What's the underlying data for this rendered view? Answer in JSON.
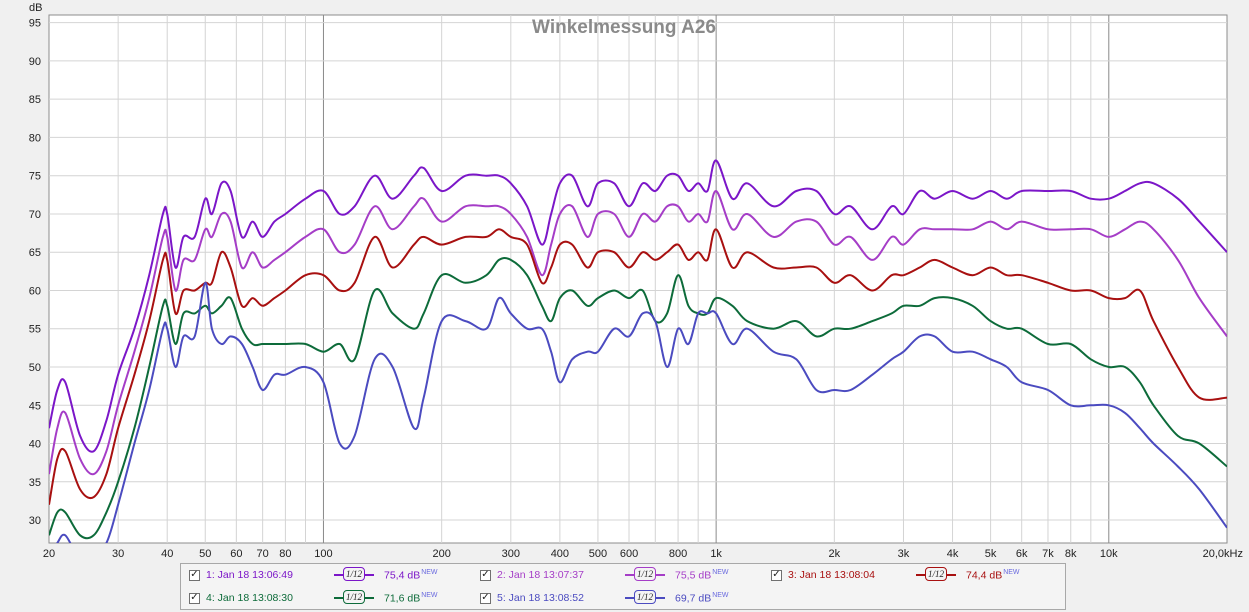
{
  "chart_data": {
    "type": "line",
    "title": "Winkelmessung A26",
    "ylabel": "dB",
    "xscale": "log",
    "xlim": [
      20,
      20000
    ],
    "ylim": [
      27,
      96
    ],
    "grid": true,
    "x_tick_labels": [
      {
        "v": 20,
        "t": "20"
      },
      {
        "v": 30,
        "t": "30"
      },
      {
        "v": 40,
        "t": "40"
      },
      {
        "v": 50,
        "t": "50"
      },
      {
        "v": 60,
        "t": "60"
      },
      {
        "v": 70,
        "t": "70"
      },
      {
        "v": 80,
        "t": "80"
      },
      {
        "v": 100,
        "t": "100"
      },
      {
        "v": 200,
        "t": "200"
      },
      {
        "v": 300,
        "t": "300"
      },
      {
        "v": 400,
        "t": "400"
      },
      {
        "v": 500,
        "t": "500"
      },
      {
        "v": 600,
        "t": "600"
      },
      {
        "v": 800,
        "t": "800"
      },
      {
        "v": 1000,
        "t": "1k"
      },
      {
        "v": 2000,
        "t": "2k"
      },
      {
        "v": 3000,
        "t": "3k"
      },
      {
        "v": 4000,
        "t": "4k"
      },
      {
        "v": 5000,
        "t": "5k"
      },
      {
        "v": 6000,
        "t": "6k"
      },
      {
        "v": 7000,
        "t": "7k"
      },
      {
        "v": 8000,
        "t": "8k"
      },
      {
        "v": 10000,
        "t": "10k"
      },
      {
        "v": 20000,
        "t": "20,0kHz"
      }
    ],
    "y_ticks": [
      30,
      35,
      40,
      45,
      50,
      55,
      60,
      65,
      70,
      75,
      80,
      85,
      90,
      95
    ],
    "series": [
      {
        "name": "1: Jan 18 13:06:49",
        "level": "75,4 dB",
        "color": "#7b16c8",
        "smoothing": "1/12",
        "x": [
          20,
          21,
          22,
          24,
          26,
          28,
          30,
          33,
          36,
          39,
          40,
          42,
          44,
          47,
          50,
          52,
          55,
          58,
          62,
          66,
          70,
          75,
          80,
          90,
          100,
          110,
          120,
          135,
          150,
          170,
          180,
          200,
          230,
          260,
          280,
          300,
          330,
          360,
          380,
          400,
          430,
          470,
          500,
          550,
          600,
          650,
          700,
          750,
          800,
          850,
          900,
          950,
          1000,
          1100,
          1200,
          1400,
          1600,
          1800,
          2000,
          2200,
          2500,
          2800,
          3000,
          3300,
          3600,
          4000,
          4500,
          5000,
          5500,
          6000,
          7000,
          8000,
          9000,
          10000,
          11000,
          12000,
          13000,
          15000,
          17000,
          20000
        ],
        "y": [
          42,
          47,
          48,
          41,
          39,
          43,
          49,
          55,
          62,
          70,
          70,
          63,
          67,
          67,
          72,
          70,
          74,
          73,
          67,
          69,
          67,
          69,
          70,
          72,
          73,
          70,
          71,
          75,
          72,
          75,
          76,
          73,
          75,
          75,
          75,
          74,
          71,
          66,
          70,
          74,
          75,
          71,
          74,
          74,
          71,
          74,
          73,
          75,
          75,
          73,
          74,
          73,
          77,
          72,
          74,
          71,
          73,
          73,
          70,
          71,
          68,
          71,
          70,
          73,
          72,
          73,
          72,
          73,
          72,
          73,
          73,
          73,
          72,
          72,
          73,
          74,
          74,
          72,
          69,
          65
        ]
      },
      {
        "name": "2: Jan 18 13:07:37",
        "level": "75,5 dB",
        "color": "#a53dc7",
        "smoothing": "1/12",
        "x": [
          20,
          21,
          22,
          24,
          26,
          28,
          30,
          33,
          36,
          39,
          40,
          42,
          44,
          47,
          50,
          52,
          55,
          58,
          62,
          66,
          70,
          75,
          80,
          90,
          100,
          110,
          120,
          135,
          150,
          170,
          180,
          200,
          230,
          260,
          280,
          300,
          330,
          360,
          380,
          400,
          430,
          470,
          500,
          550,
          600,
          650,
          700,
          750,
          800,
          850,
          900,
          950,
          1000,
          1100,
          1200,
          1400,
          1600,
          1800,
          2000,
          2200,
          2500,
          2800,
          3000,
          3300,
          3600,
          4000,
          4500,
          5000,
          5500,
          6000,
          7000,
          8000,
          9000,
          10000,
          11000,
          12000,
          13000,
          15000,
          17000,
          20000
        ],
        "y": [
          36,
          42,
          44,
          38,
          36,
          39,
          45,
          52,
          59,
          67,
          67,
          60,
          64,
          64,
          68,
          67,
          70,
          69,
          63,
          65,
          63,
          64,
          65,
          67,
          68,
          65,
          66,
          71,
          68,
          71,
          72,
          69,
          71,
          71,
          71,
          70,
          67,
          62,
          66,
          70,
          71,
          67,
          70,
          70,
          67,
          70,
          69,
          71,
          71,
          69,
          70,
          69,
          73,
          68,
          70,
          67,
          69,
          69,
          66,
          67,
          64,
          67,
          66,
          68,
          68,
          68,
          68,
          69,
          68,
          69,
          68,
          68,
          68,
          67,
          68,
          69,
          68,
          64,
          59,
          54
        ]
      },
      {
        "name": "3: Jan 18 13:08:04",
        "level": "74,4 dB",
        "color": "#a81010",
        "smoothing": "1/12",
        "x": [
          20,
          21,
          22,
          24,
          26,
          28,
          30,
          33,
          36,
          39,
          40,
          42,
          44,
          47,
          50,
          52,
          55,
          58,
          62,
          66,
          70,
          75,
          80,
          90,
          100,
          110,
          120,
          135,
          150,
          170,
          180,
          200,
          230,
          260,
          280,
          300,
          330,
          360,
          380,
          400,
          430,
          470,
          500,
          550,
          600,
          650,
          700,
          750,
          800,
          850,
          900,
          950,
          1000,
          1100,
          1200,
          1400,
          1600,
          1800,
          2000,
          2200,
          2500,
          2800,
          3000,
          3300,
          3600,
          4000,
          4500,
          5000,
          5500,
          6000,
          7000,
          8000,
          9000,
          10000,
          11000,
          12000,
          13000,
          15000,
          17000,
          20000
        ],
        "y": [
          32,
          38,
          39,
          34,
          33,
          36,
          42,
          49,
          56,
          64,
          64,
          57,
          60,
          60,
          61,
          61,
          65,
          63,
          58,
          59,
          58,
          59,
          60,
          62,
          62,
          60,
          61,
          67,
          63,
          66,
          67,
          66,
          67,
          67,
          68,
          67,
          66,
          61,
          63,
          66,
          66,
          63,
          65,
          65,
          63,
          65,
          64,
          65,
          66,
          64,
          65,
          64,
          68,
          63,
          65,
          63,
          63,
          63,
          61,
          62,
          60,
          62,
          62,
          63,
          64,
          63,
          62,
          63,
          62,
          62,
          61,
          60,
          60,
          59,
          59,
          60,
          56,
          50,
          46,
          46
        ]
      },
      {
        "name": "4: Jan 18 13:08:30",
        "level": "71,6 dB",
        "color": "#0d6b3a",
        "smoothing": "1/12",
        "x": [
          20,
          21,
          22,
          24,
          26,
          28,
          30,
          33,
          36,
          39,
          40,
          42,
          44,
          47,
          50,
          52,
          55,
          58,
          62,
          66,
          70,
          75,
          80,
          90,
          100,
          110,
          120,
          135,
          150,
          170,
          180,
          200,
          230,
          260,
          280,
          300,
          330,
          360,
          380,
          400,
          430,
          470,
          500,
          550,
          600,
          650,
          700,
          750,
          800,
          850,
          900,
          950,
          1000,
          1100,
          1200,
          1400,
          1600,
          1800,
          2000,
          2200,
          2500,
          2800,
          3000,
          3300,
          3600,
          4000,
          4500,
          5000,
          5500,
          6000,
          7000,
          8000,
          9000,
          10000,
          11000,
          12000,
          13000,
          15000,
          17000,
          20000
        ],
        "y": [
          28,
          31,
          31,
          28,
          28,
          31,
          35,
          42,
          50,
          58,
          58,
          53,
          57,
          57,
          58,
          57,
          58,
          59,
          55,
          53,
          53,
          53,
          53,
          53,
          52,
          53,
          51,
          60,
          57,
          55,
          57,
          62,
          61,
          62,
          64,
          64,
          62,
          58,
          56,
          59,
          60,
          58,
          59,
          60,
          59,
          60,
          56,
          57,
          62,
          58,
          57,
          57,
          59,
          58,
          56,
          55,
          56,
          54,
          55,
          55,
          56,
          57,
          58,
          58,
          59,
          59,
          58,
          56,
          55,
          55,
          53,
          53,
          51,
          50,
          50,
          48,
          45,
          41,
          40,
          37
        ]
      },
      {
        "name": "5: Jan 18 13:08:52",
        "level": "69,7 dB",
        "color": "#4b4bc0",
        "smoothing": "1/12",
        "x": [
          20,
          21,
          22,
          24,
          26,
          28,
          30,
          33,
          36,
          39,
          40,
          42,
          44,
          47,
          50,
          52,
          55,
          58,
          62,
          66,
          70,
          75,
          80,
          90,
          100,
          110,
          120,
          135,
          150,
          170,
          180,
          200,
          230,
          260,
          280,
          300,
          330,
          360,
          380,
          400,
          430,
          470,
          500,
          550,
          600,
          650,
          700,
          750,
          800,
          850,
          900,
          950,
          1000,
          1100,
          1200,
          1400,
          1600,
          1800,
          2000,
          2200,
          2500,
          2800,
          3000,
          3300,
          3600,
          4000,
          4500,
          5000,
          5500,
          6000,
          7000,
          8000,
          9000,
          10000,
          11000,
          12000,
          13000,
          15000,
          17000,
          20000
        ],
        "y": [
          25,
          27,
          28,
          25,
          26,
          27,
          32,
          40,
          47,
          55,
          55,
          50,
          54,
          54,
          61,
          55,
          53,
          54,
          53,
          50,
          47,
          49,
          49,
          50,
          48,
          40,
          41,
          51,
          50,
          42,
          46,
          56,
          56,
          55,
          59,
          57,
          55,
          55,
          52,
          48,
          51,
          52,
          52,
          55,
          54,
          57,
          56,
          50,
          55,
          53,
          57,
          57,
          57,
          53,
          55,
          52,
          51,
          47,
          47,
          47,
          49,
          51,
          52,
          54,
          54,
          52,
          52,
          51,
          50,
          48,
          47,
          45,
          45,
          45,
          44,
          42,
          40,
          37,
          34,
          29
        ]
      }
    ]
  }
}
